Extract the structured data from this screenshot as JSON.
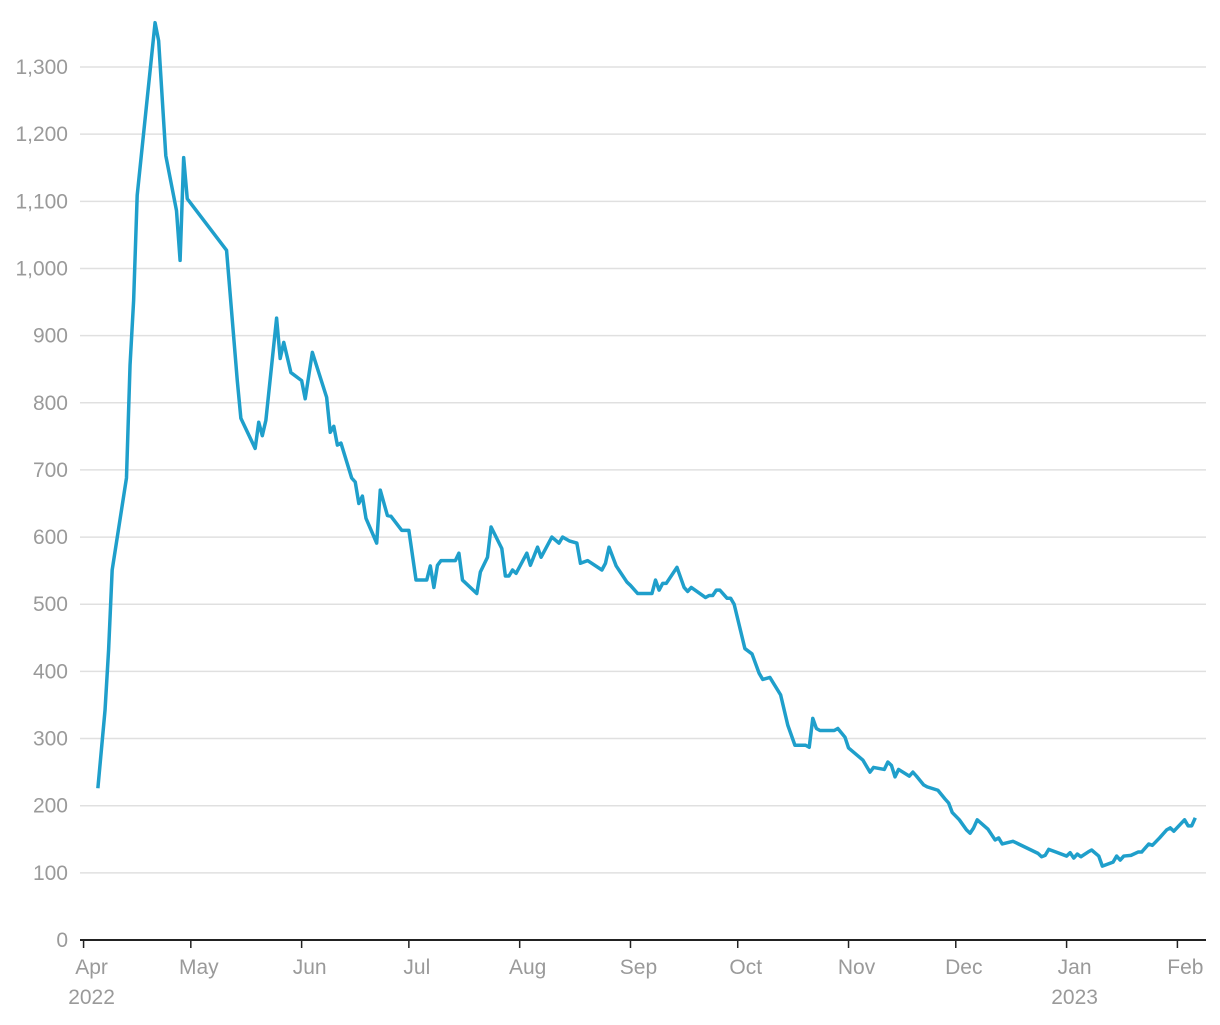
{
  "chart_data": {
    "type": "line",
    "color": "#1f9fcb",
    "grid": true,
    "xlim": [
      "2022-03-31",
      "2023-02-09"
    ],
    "xticks": [
      {
        "value": "2022-04-01",
        "label": "Apr\n2022"
      },
      {
        "value": "2022-05-01",
        "label": "May"
      },
      {
        "value": "2022-06-01",
        "label": "Jun"
      },
      {
        "value": "2022-07-01",
        "label": "Jul"
      },
      {
        "value": "2022-08-01",
        "label": "Aug"
      },
      {
        "value": "2022-09-01",
        "label": "Sep"
      },
      {
        "value": "2022-10-01",
        "label": "Oct"
      },
      {
        "value": "2022-11-01",
        "label": "Nov"
      },
      {
        "value": "2022-12-01",
        "label": "Dec"
      },
      {
        "value": "2023-01-01",
        "label": "Jan\n2023"
      },
      {
        "value": "2023-02-01",
        "label": "Feb"
      }
    ],
    "ylim": [
      0,
      1370
    ],
    "yticks": [
      0,
      100,
      200,
      300,
      400,
      500,
      600,
      700,
      800,
      900,
      {
        "value": 1000,
        "label": "1,000"
      },
      {
        "value": 1100,
        "label": "1,100"
      },
      {
        "value": 1200,
        "label": "1,200"
      },
      {
        "value": 1300,
        "label": "1,300"
      }
    ],
    "x": [
      "2022-04-05",
      "2022-04-07",
      "2022-04-08",
      "2022-04-09",
      "2022-04-13",
      "2022-04-14",
      "2022-04-15",
      "2022-04-16",
      "2022-04-21",
      "2022-04-22",
      "2022-04-24",
      "2022-04-27",
      "2022-04-28",
      "2022-04-29",
      "2022-04-30",
      "2022-05-11",
      "2022-05-14",
      "2022-05-15",
      "2022-05-19",
      "2022-05-20",
      "2022-05-21",
      "2022-05-22",
      "2022-05-25",
      "2022-05-26",
      "2022-05-27",
      "2022-05-29",
      "2022-06-01",
      "2022-06-02",
      "2022-06-04",
      "2022-06-08",
      "2022-06-09",
      "2022-06-10",
      "2022-06-11",
      "2022-06-12",
      "2022-06-15",
      "2022-06-16",
      "2022-06-17",
      "2022-06-18",
      "2022-06-19",
      "2022-06-22",
      "2022-06-23",
      "2022-06-25",
      "2022-06-26",
      "2022-06-29",
      "2022-07-01",
      "2022-07-03",
      "2022-07-06",
      "2022-07-07",
      "2022-07-08",
      "2022-07-09",
      "2022-07-10",
      "2022-07-14",
      "2022-07-15",
      "2022-07-16",
      "2022-07-20",
      "2022-07-21",
      "2022-07-23",
      "2022-07-24",
      "2022-07-27",
      "2022-07-28",
      "2022-07-29",
      "2022-07-30",
      "2022-07-31",
      "2022-08-03",
      "2022-08-04",
      "2022-08-06",
      "2022-08-07",
      "2022-08-10",
      "2022-08-12",
      "2022-08-13",
      "2022-08-15",
      "2022-08-17",
      "2022-08-18",
      "2022-08-20",
      "2022-08-24",
      "2022-08-25",
      "2022-08-26",
      "2022-08-28",
      "2022-08-31",
      "2022-09-01",
      "2022-09-03",
      "2022-09-07",
      "2022-09-08",
      "2022-09-09",
      "2022-09-10",
      "2022-09-11",
      "2022-09-14",
      "2022-09-16",
      "2022-09-17",
      "2022-09-18",
      "2022-09-22",
      "2022-09-23",
      "2022-09-24",
      "2022-09-25",
      "2022-09-26",
      "2022-09-28",
      "2022-09-29",
      "2022-09-30",
      "2022-10-03",
      "2022-10-05",
      "2022-10-07",
      "2022-10-08",
      "2022-10-10",
      "2022-10-13",
      "2022-10-15",
      "2022-10-17",
      "2022-10-20",
      "2022-10-21",
      "2022-10-22",
      "2022-10-23",
      "2022-10-24",
      "2022-10-28",
      "2022-10-29",
      "2022-10-31",
      "2022-11-01",
      "2022-11-05",
      "2022-11-07",
      "2022-11-08",
      "2022-11-11",
      "2022-11-12",
      "2022-11-13",
      "2022-11-14",
      "2022-11-15",
      "2022-11-18",
      "2022-11-19",
      "2022-11-20",
      "2022-11-22",
      "2022-11-23",
      "2022-11-26",
      "2022-11-28",
      "2022-11-29",
      "2022-11-30",
      "2022-12-02",
      "2022-12-04",
      "2022-12-05",
      "2022-12-06",
      "2022-12-07",
      "2022-12-10",
      "2022-12-12",
      "2022-12-13",
      "2022-12-14",
      "2022-12-17",
      "2022-12-24",
      "2022-12-25",
      "2022-12-26",
      "2022-12-27",
      "2022-12-29",
      "2023-01-01",
      "2023-01-02",
      "2023-01-03",
      "2023-01-04",
      "2023-01-05",
      "2023-01-07",
      "2023-01-08",
      "2023-01-10",
      "2023-01-11",
      "2023-01-14",
      "2023-01-15",
      "2023-01-16",
      "2023-01-17",
      "2023-01-19",
      "2023-01-21",
      "2023-01-22",
      "2023-01-24",
      "2023-01-25",
      "2023-01-27",
      "2023-01-29",
      "2023-01-30",
      "2023-01-31",
      "2023-02-03",
      "2023-02-04",
      "2023-02-05",
      "2023-02-06"
    ],
    "values": [
      226,
      342,
      432,
      551,
      688,
      856,
      952,
      1109,
      1366,
      1339,
      1168,
      1086,
      1012,
      1165,
      1104,
      1027,
      833,
      777,
      732,
      771,
      751,
      774,
      926,
      866,
      890,
      845,
      833,
      806,
      875,
      808,
      756,
      765,
      737,
      740,
      688,
      682,
      650,
      661,
      628,
      591,
      670,
      632,
      631,
      610,
      610,
      536,
      536,
      557,
      525,
      558,
      565,
      565,
      576,
      536,
      516,
      548,
      570,
      615,
      583,
      542,
      542,
      551,
      546,
      576,
      558,
      585,
      570,
      600,
      591,
      600,
      594,
      591,
      561,
      565,
      551,
      561,
      585,
      557,
      533,
      528,
      516,
      516,
      536,
      521,
      531,
      531,
      555,
      525,
      519,
      525,
      510,
      513,
      513,
      521,
      521,
      509,
      509,
      500,
      434,
      426,
      397,
      388,
      391,
      365,
      320,
      290,
      290,
      287,
      330,
      315,
      312,
      312,
      315,
      302,
      286,
      268,
      250,
      257,
      254,
      265,
      260,
      243,
      254,
      244,
      250,
      244,
      231,
      228,
      223,
      210,
      204,
      190,
      179,
      164,
      159,
      167,
      179,
      165,
      149,
      152,
      143,
      147,
      129,
      124,
      126,
      135,
      131,
      125,
      130,
      122,
      128,
      124,
      131,
      134,
      125,
      110,
      116,
      125,
      119,
      125,
      126,
      131,
      131,
      143,
      141,
      152,
      164,
      167,
      162,
      179,
      170,
      170,
      182
    ]
  }
}
